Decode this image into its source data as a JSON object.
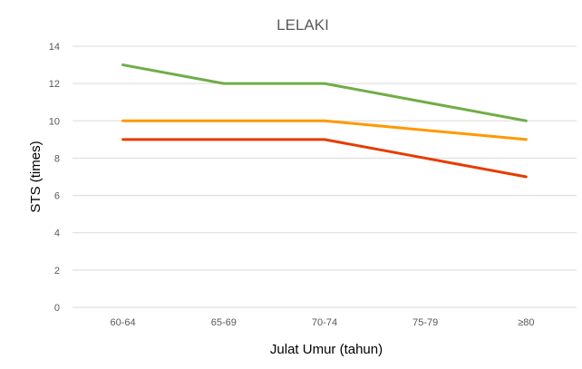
{
  "chart_data": {
    "type": "line",
    "title": "LELAKI",
    "xlabel": "Julat Umur (tahun)",
    "ylabel": "STS (times)",
    "categories": [
      "60-64",
      "65-69",
      "70-74",
      "75-79",
      "≥80"
    ],
    "ylim": [
      0,
      14
    ],
    "yticks": [
      0,
      2,
      4,
      6,
      8,
      10,
      12,
      14
    ],
    "grid": true,
    "legend": "none",
    "series": [
      {
        "color": "#70ad47",
        "values": [
          13,
          12,
          12,
          11,
          10
        ]
      },
      {
        "color": "#ff9900",
        "values": [
          10,
          10,
          10,
          9.5,
          9
        ]
      },
      {
        "color": "#e63c00",
        "values": [
          9,
          9,
          9,
          8,
          7
        ]
      }
    ]
  }
}
